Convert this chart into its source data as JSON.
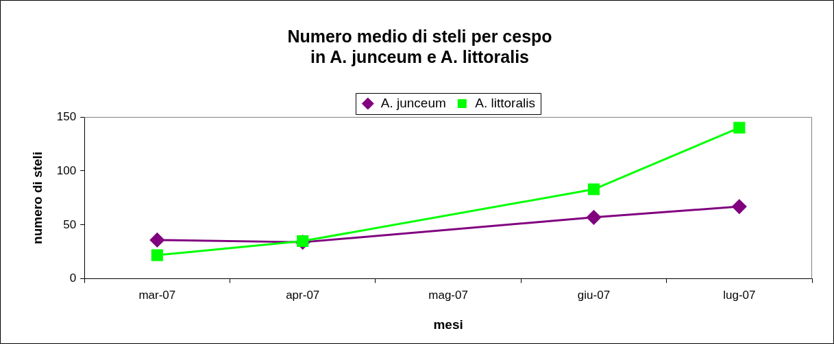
{
  "chart_data": {
    "type": "line",
    "title": "Numero medio di steli per cespo\nin A. junceum e A. littoralis",
    "xlabel": "mesi",
    "ylabel": "numero di steli",
    "categories": [
      "mar-07",
      "apr-07",
      "mag-07",
      "giu-07",
      "lug-07"
    ],
    "series": [
      {
        "name": "A. junceum",
        "color": "#800080",
        "marker": "diamond",
        "values": [
          36,
          34,
          null,
          57,
          67
        ]
      },
      {
        "name": "A. littoralis",
        "color": "#00ff00",
        "marker": "square",
        "values": [
          22,
          35,
          null,
          83,
          140
        ]
      }
    ],
    "ylim": [
      0,
      150
    ],
    "yticks": [
      0,
      50,
      100,
      150
    ],
    "legend": "top"
  }
}
